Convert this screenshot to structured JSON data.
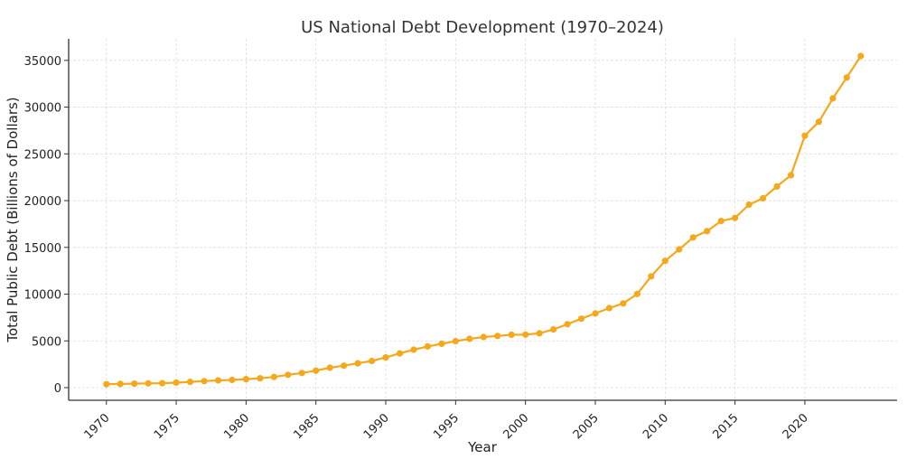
{
  "chart_data": {
    "type": "line",
    "title": "US National Debt Development (1970–2024)",
    "xlabel": "Year",
    "ylabel": "Total Public Debt (Billions of Dollars)",
    "xlim": [
      1967.3,
      2026.6
    ],
    "ylim": [
      -1350,
      37300
    ],
    "grid": true,
    "color": "#f5a81c",
    "x_ticks": [
      "1970",
      "1975",
      "1980",
      "1985",
      "1990",
      "1995",
      "2000",
      "2005",
      "2010",
      "2015",
      "2020"
    ],
    "y_ticks": [
      "0",
      "5000",
      "10000",
      "15000",
      "20000",
      "25000",
      "30000",
      "35000"
    ],
    "series": [
      {
        "name": "Total Public Debt",
        "x": [
          1970,
          1971,
          1972,
          1973,
          1974,
          1975,
          1976,
          1977,
          1978,
          1979,
          1980,
          1981,
          1982,
          1983,
          1984,
          1985,
          1986,
          1987,
          1988,
          1989,
          1990,
          1991,
          1992,
          1993,
          1994,
          1995,
          1996,
          1997,
          1998,
          1999,
          2000,
          2001,
          2002,
          2003,
          2004,
          2005,
          2006,
          2007,
          2008,
          2009,
          2010,
          2011,
          2012,
          2013,
          2014,
          2015,
          2016,
          2017,
          2018,
          2019,
          2020,
          2021,
          2022,
          2023,
          2024
        ],
        "values": [
          371,
          398,
          427,
          458,
          475,
          533,
          620,
          699,
          772,
          827,
          908,
          998,
          1142,
          1377,
          1572,
          1823,
          2125,
          2350,
          2602,
          2857,
          3233,
          3665,
          4065,
          4411,
          4693,
          4974,
          5225,
          5413,
          5526,
          5656,
          5674,
          5807,
          6228,
          6783,
          7379,
          7933,
          8507,
          9008,
          10025,
          11910,
          13562,
          14790,
          16066,
          16738,
          17824,
          18151,
          19573,
          20245,
          21516,
          22719,
          26945,
          28429,
          30929,
          33167,
          35465
        ]
      }
    ]
  }
}
